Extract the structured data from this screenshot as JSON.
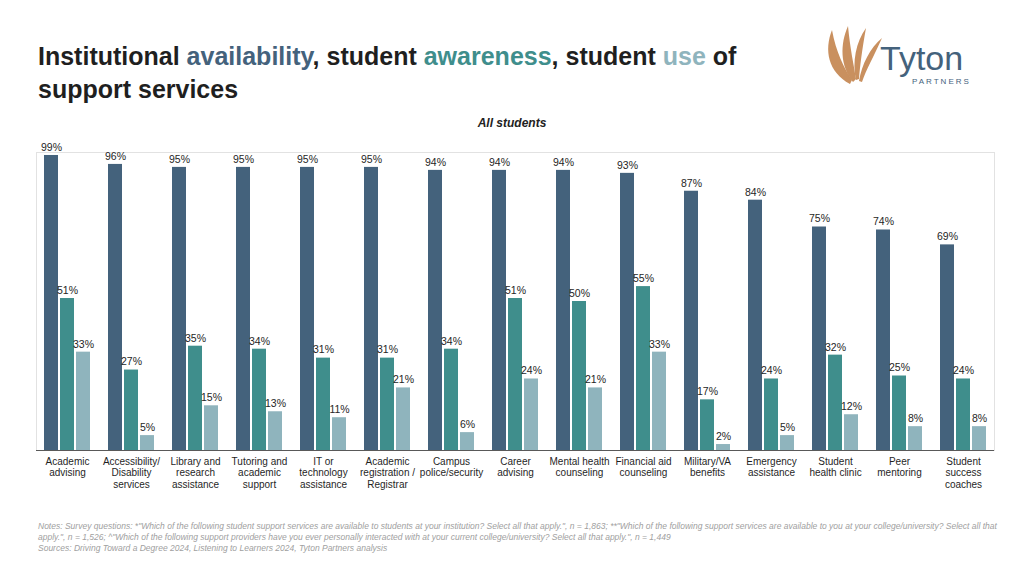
{
  "chart_data": {
    "type": "bar",
    "title": "Institutional availability, student awareness, student use of support services",
    "subtitle": "All students",
    "logo": "Tyton",
    "logo_subtitle": "PARTNERS",
    "notes": "Notes: Survey questions: *\"Which of the following student support services are available to students at your institution? Select all that apply.\", n = 1,863; **\"Which of the following support services are available to you at your college/university? Select all that apply.\", n = 1,526; ^\"Which of the following support providers have you ever personally interacted with at your current college/university? Select all that apply.\", n = 1,449",
    "sources": "Sources: Driving Toward a Degree 2024, Listening to Learners 2024, Tyton Partners analysis",
    "categories": [
      "Academic advising",
      "Accessibility/ Disability services",
      "Library and research assistance",
      "Tutoring and academic support",
      "IT or technology assistance",
      "Academic registration / Registrar",
      "Campus police/security",
      "Career advising",
      "Mental health counseling",
      "Financial aid counseling",
      "Military/VA benefits",
      "Emergency assistance",
      "Student health clinic",
      "Peer mentoring",
      "Student success coaches"
    ],
    "series": [
      {
        "name": "availability",
        "color": "#44627c",
        "values": [
          99,
          96,
          95,
          95,
          95,
          95,
          94,
          94,
          94,
          93,
          87,
          84,
          75,
          74,
          69
        ],
        "value_labels": [
          "99%",
          "96%",
          "95%",
          "95%",
          "95%",
          "95%",
          "94%",
          "94%",
          "94%",
          "93%",
          "87%",
          "84%",
          "75%",
          "74%",
          "69%"
        ]
      },
      {
        "name": "awareness",
        "color": "#3f8e8c",
        "values": [
          51,
          27,
          35,
          34,
          31,
          31,
          34,
          51,
          50,
          55,
          17,
          24,
          32,
          25,
          24
        ],
        "value_labels": [
          "51%",
          "27%",
          "35%",
          "34%",
          "31%",
          "31%",
          "34%",
          "51%",
          "50%",
          "55%",
          "17%",
          "24%",
          "32%",
          "25%",
          "24%"
        ]
      },
      {
        "name": "use",
        "color": "#8fb4bd",
        "values": [
          33,
          5,
          15,
          13,
          11,
          21,
          6,
          24,
          21,
          33,
          2,
          5,
          12,
          8,
          8
        ],
        "value_labels": [
          "33%",
          "5%",
          "15%",
          "13%",
          "11%",
          "21%",
          "6%",
          "24%",
          "21%",
          "33%",
          "2%",
          "5%",
          "12%",
          "8%",
          "8%"
        ]
      }
    ],
    "ylim": [
      0,
      100
    ],
    "yticks": [],
    "grid": false,
    "data_labels": true,
    "tick_labels": "x"
  }
}
